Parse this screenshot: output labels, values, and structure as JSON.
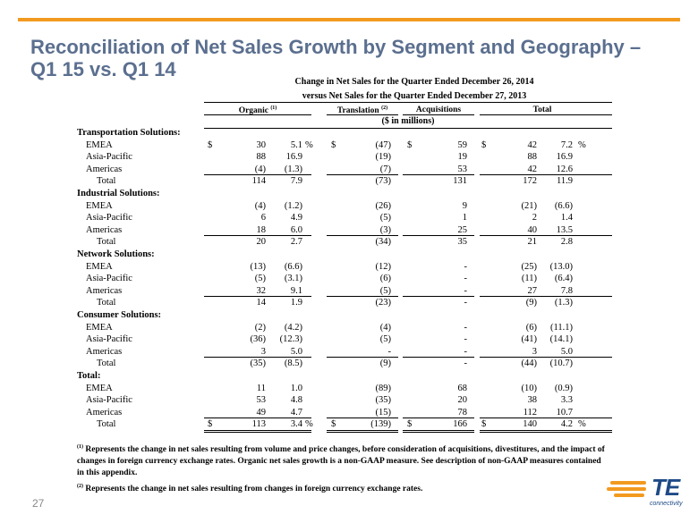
{
  "title": {
    "line1": "Reconciliation of Net Sales Growth by Segment and Geography –",
    "line2": "Q1 15 vs. Q1 14"
  },
  "table_header": {
    "line1": "Change in Net Sales for the Quarter Ended December 26, 2014",
    "line2": "versus Net Sales for the Quarter Ended December 27, 2013",
    "units": "($ in millions)"
  },
  "columns": {
    "organic": "Organic",
    "organic_note": "(1)",
    "translation": "Translation",
    "translation_note": "(2)",
    "acquisitions": "Acquisitions",
    "total": "Total"
  },
  "rows": [
    {
      "type": "section",
      "label": "Transportation Solutions:"
    },
    {
      "type": "item",
      "label": "EMEA",
      "org_dollar": "$",
      "org_amt": "30",
      "org_pct": "5.1",
      "org_pct_sign": "%",
      "tr_dollar": "$",
      "tr_amt": "(47)",
      "acq_dollar": "$",
      "acq_amt": "59",
      "tot_dollar": "$",
      "tot_amt": "42",
      "tot_pct": "7.2",
      "tot_pct_sign": "%"
    },
    {
      "type": "item",
      "label": "Asia-Pacific",
      "org_amt": "88",
      "org_pct": "16.9",
      "tr_amt": "(19)",
      "acq_amt": "19",
      "tot_amt": "88",
      "tot_pct": "16.9"
    },
    {
      "type": "item",
      "label": "Americas",
      "org_amt": "(4)",
      "org_pct": "(1.3)",
      "tr_amt": "(7)",
      "acq_amt": "53",
      "tot_amt": "42",
      "tot_pct": "12.6"
    },
    {
      "type": "total",
      "label": "Total",
      "org_amt": "114",
      "org_pct": "7.9",
      "tr_amt": "(73)",
      "acq_amt": "131",
      "tot_amt": "172",
      "tot_pct": "11.9"
    },
    {
      "type": "section",
      "label": "Industrial Solutions:"
    },
    {
      "type": "item",
      "label": "EMEA",
      "org_amt": "(4)",
      "org_pct": "(1.2)",
      "tr_amt": "(26)",
      "acq_amt": "9",
      "tot_amt": "(21)",
      "tot_pct": "(6.6)"
    },
    {
      "type": "item",
      "label": "Asia-Pacific",
      "org_amt": "6",
      "org_pct": "4.9",
      "tr_amt": "(5)",
      "acq_amt": "1",
      "tot_amt": "2",
      "tot_pct": "1.4"
    },
    {
      "type": "item",
      "label": "Americas",
      "org_amt": "18",
      "org_pct": "6.0",
      "tr_amt": "(3)",
      "acq_amt": "25",
      "tot_amt": "40",
      "tot_pct": "13.5"
    },
    {
      "type": "total",
      "label": "Total",
      "org_amt": "20",
      "org_pct": "2.7",
      "tr_amt": "(34)",
      "acq_amt": "35",
      "tot_amt": "21",
      "tot_pct": "2.8"
    },
    {
      "type": "section",
      "label": "Network Solutions:"
    },
    {
      "type": "item",
      "label": "EMEA",
      "org_amt": "(13)",
      "org_pct": "(6.6)",
      "tr_amt": "(12)",
      "acq_amt": "-",
      "tot_amt": "(25)",
      "tot_pct": "(13.0)"
    },
    {
      "type": "item",
      "label": "Asia-Pacific",
      "org_amt": "(5)",
      "org_pct": "(3.1)",
      "tr_amt": "(6)",
      "acq_amt": "-",
      "tot_amt": "(11)",
      "tot_pct": "(6.4)"
    },
    {
      "type": "item",
      "label": "Americas",
      "org_amt": "32",
      "org_pct": "9.1",
      "tr_amt": "(5)",
      "acq_amt": "-",
      "tot_amt": "27",
      "tot_pct": "7.8"
    },
    {
      "type": "total",
      "label": "Total",
      "org_amt": "14",
      "org_pct": "1.9",
      "tr_amt": "(23)",
      "acq_amt": "-",
      "tot_amt": "(9)",
      "tot_pct": "(1.3)"
    },
    {
      "type": "section",
      "label": "Consumer Solutions:"
    },
    {
      "type": "item",
      "label": "EMEA",
      "org_amt": "(2)",
      "org_pct": "(4.2)",
      "tr_amt": "(4)",
      "acq_amt": "-",
      "tot_amt": "(6)",
      "tot_pct": "(11.1)"
    },
    {
      "type": "item",
      "label": "Asia-Pacific",
      "org_amt": "(36)",
      "org_pct": "(12.3)",
      "tr_amt": "(5)",
      "acq_amt": "-",
      "tot_amt": "(41)",
      "tot_pct": "(14.1)"
    },
    {
      "type": "item",
      "label": "Americas",
      "org_amt": "3",
      "org_pct": "5.0",
      "tr_amt": "-",
      "acq_amt": "-",
      "tot_amt": "3",
      "tot_pct": "5.0"
    },
    {
      "type": "total",
      "label": "Total",
      "org_amt": "(35)",
      "org_pct": "(8.5)",
      "tr_amt": "(9)",
      "acq_amt": "-",
      "tot_amt": "(44)",
      "tot_pct": "(10.7)"
    },
    {
      "type": "section",
      "label": "Total:"
    },
    {
      "type": "item",
      "label": "EMEA",
      "org_amt": "11",
      "org_pct": "1.0",
      "tr_amt": "(89)",
      "acq_amt": "68",
      "tot_amt": "(10)",
      "tot_pct": "(0.9)"
    },
    {
      "type": "item",
      "label": "Asia-Pacific",
      "org_amt": "53",
      "org_pct": "4.8",
      "tr_amt": "(35)",
      "acq_amt": "20",
      "tot_amt": "38",
      "tot_pct": "3.3"
    },
    {
      "type": "item",
      "label": "Americas",
      "org_amt": "49",
      "org_pct": "4.7",
      "tr_amt": "(15)",
      "acq_amt": "78",
      "tot_amt": "112",
      "tot_pct": "10.7"
    },
    {
      "type": "grand",
      "label": "Total",
      "org_dollar": "$",
      "org_amt": "113",
      "org_pct": "3.4",
      "org_pct_sign": "%",
      "tr_dollar": "$",
      "tr_amt": "(139)",
      "acq_dollar": "$",
      "acq_amt": "166",
      "tot_dollar": "$",
      "tot_amt": "140",
      "tot_pct": "4.2",
      "tot_pct_sign": "%"
    }
  ],
  "footnotes": {
    "note1_marker": "(1)",
    "note1_text": " Represents the change in net sales resulting from volume and price changes, before consideration of acquisitions, divestitures, and the impact of changes in foreign currency exchange rates.  Organic net sales growth is a non-GAAP measure.  See description of non-GAAP measures contained in this appendix.",
    "note2_marker": "(2)",
    "note2_text": " Represents the change in net sales resulting from changes in foreign currency exchange rates."
  },
  "page_number": "27",
  "logo": {
    "text": "TE",
    "subtext": "connectivity"
  },
  "colors": {
    "accent": "#f29a1f",
    "title": "#5b6f8f",
    "brand": "#1e4a86"
  }
}
